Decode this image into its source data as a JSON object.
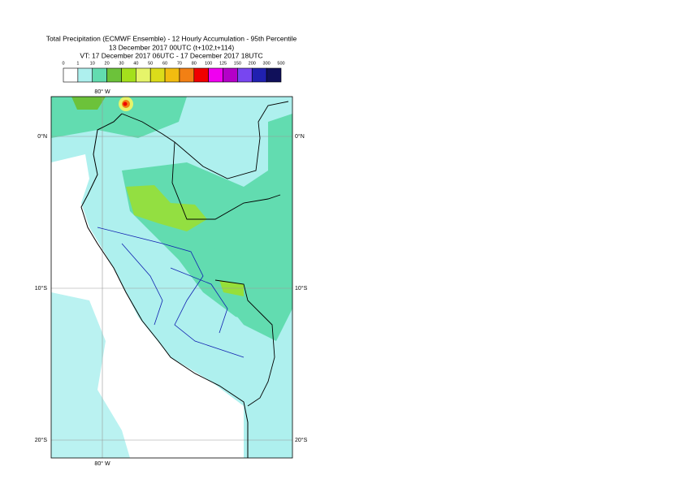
{
  "header": {
    "title_lines": [
      "Total Precipitation (ECMWF Ensemble) - 12 Hourly Accumulation - 95th Percentile",
      "13 December 2017 00UTC (t+102,t+114)",
      "VT: 17 December 2017 06UTC - 17 December 2017 18UTC"
    ]
  },
  "colorbar": {
    "labels": [
      "0",
      "1",
      "10",
      "20",
      "30",
      "40",
      "50",
      "60",
      "70",
      "80",
      "100",
      "125",
      "150",
      "200",
      "300",
      "500"
    ],
    "colors": [
      "#ffffff",
      "#aef0ee",
      "#62dcb0",
      "#6cc23a",
      "#a4e01c",
      "#e6f46a",
      "#dcdc1a",
      "#f2bc10",
      "#f28014",
      "#f00000",
      "#f000f0",
      "#b400c8",
      "#7846f0",
      "#2020b0",
      "#10105a"
    ]
  },
  "map": {
    "longitude_labels": [
      "80° W",
      "80° W"
    ],
    "latitude_labels": [
      "0°N",
      "10°S",
      "20°S"
    ]
  }
}
